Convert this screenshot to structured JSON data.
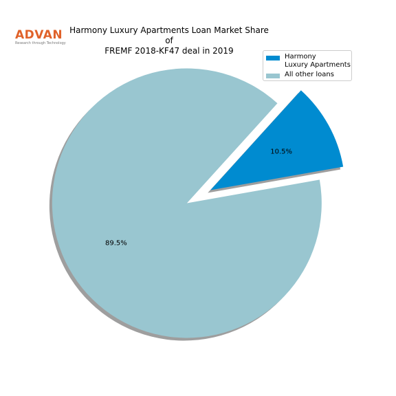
{
  "logo": {
    "word": "ADVAN",
    "tagline": "Research through Technology"
  },
  "chart_data": {
    "type": "pie",
    "title": "Harmony Luxury Apartments Loan Market Share of\nFREMF 2018-KF47 deal in 2019",
    "slices": [
      {
        "label": "Harmony\nLuxury Apartments",
        "value": 10.5,
        "pct_label": "10.5%",
        "color": "#008bd0",
        "exploded": true
      },
      {
        "label": "All other loans",
        "value": 89.5,
        "pct_label": "89.5%",
        "color": "#99c6d0",
        "exploded": true
      }
    ],
    "start_angle_deg": 10,
    "shadow": true,
    "legend_placement": "top-right"
  }
}
